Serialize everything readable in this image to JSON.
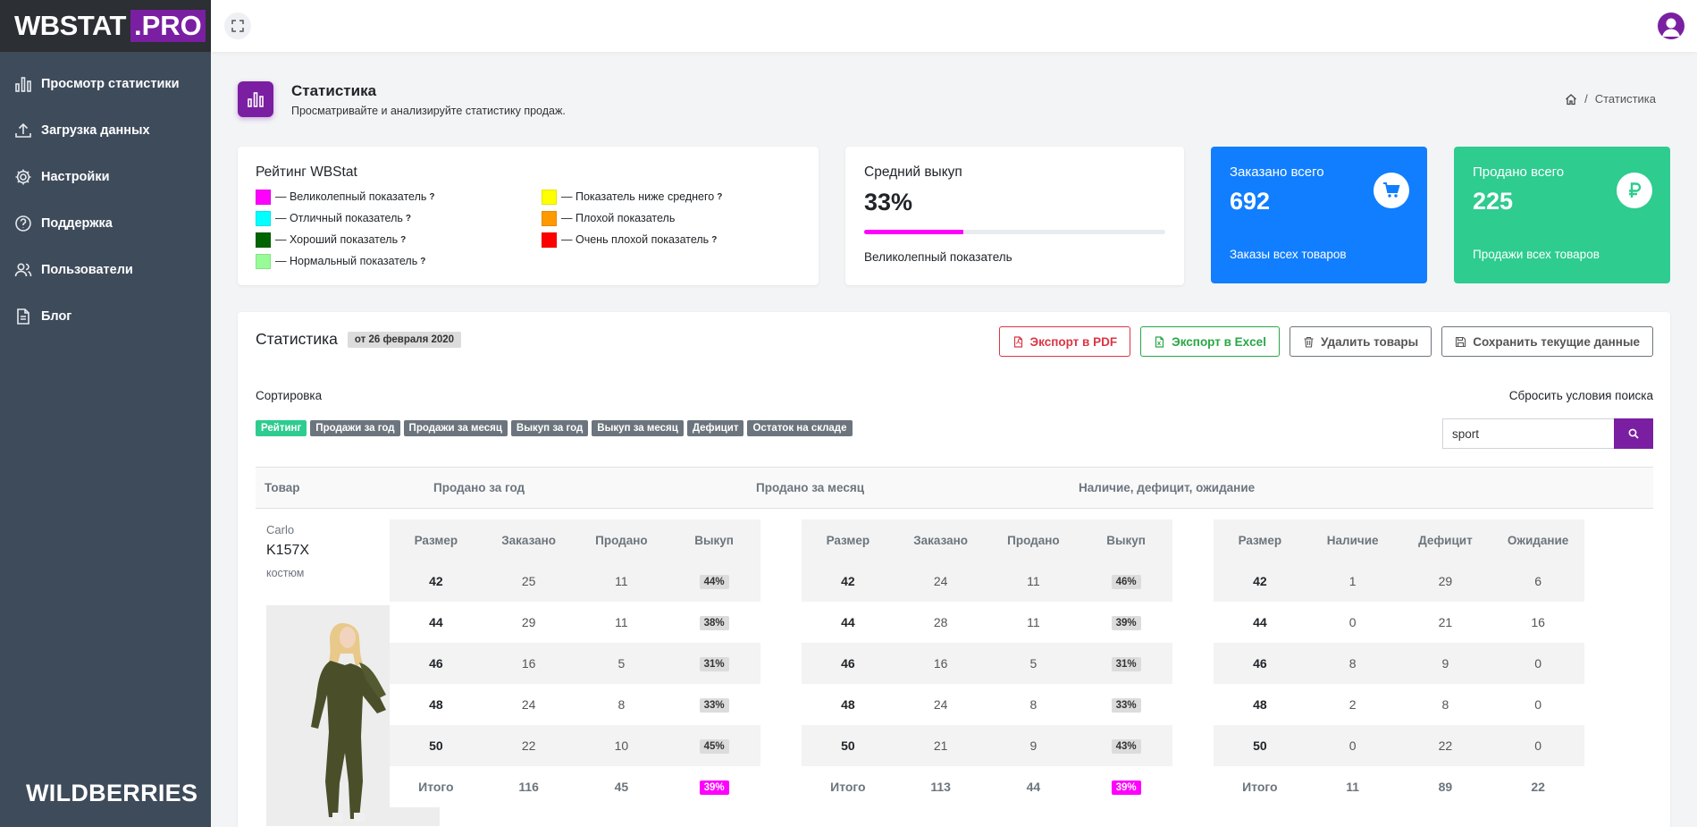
{
  "brand": {
    "logo_main": "WBSTAT",
    "logo_pro": ".PRO",
    "footer": "WILDBERRIES"
  },
  "sidebar": {
    "items": [
      {
        "label": "Просмотр статистики",
        "icon": "bar-chart-icon"
      },
      {
        "label": "Загрузка данных",
        "icon": "upload-icon"
      },
      {
        "label": "Настройки",
        "icon": "gear-icon"
      },
      {
        "label": "Поддержка",
        "icon": "help-circle-icon"
      },
      {
        "label": "Пользователи",
        "icon": "users-icon"
      },
      {
        "label": "Блог",
        "icon": "document-icon"
      }
    ]
  },
  "header": {
    "title": "Статистика",
    "subtitle": "Просматривайте и анализируйте статистику продаж.",
    "breadcrumb": "Статистика"
  },
  "rating": {
    "title": "Рейтинг WBStat",
    "legend": [
      {
        "label": "— Великолепный показатель",
        "color": "#ff00ff"
      },
      {
        "label": "— Показатель ниже среднего",
        "color": "#ffff00"
      },
      {
        "label": "— Отличный показатель",
        "color": "#00ffff"
      },
      {
        "label": "— Плохой показатель",
        "color": "#ff9900"
      },
      {
        "label": "— Хороший показатель",
        "color": "#006400"
      },
      {
        "label": "— Очень плохой показатель",
        "color": "#ff0000"
      },
      {
        "label": "— Нормальный показатель",
        "color": "#98fb98"
      }
    ],
    "question_mark": "?"
  },
  "average": {
    "title": "Средний выкуп",
    "value": "33%",
    "progress": 0.33,
    "note": "Великолепный показатель"
  },
  "orders": {
    "title": "Заказано всего",
    "value": "692",
    "note": "Заказы всех товаров",
    "color": "#117eff"
  },
  "sold": {
    "title": "Продано всего",
    "value": "225",
    "note": "Продажи всех товаров",
    "color": "#2ecc8f"
  },
  "stats": {
    "title": "Статистика",
    "date_badge": "от 26 февраля 2020",
    "buttons": {
      "pdf": "Экспорт в PDF",
      "excel": "Экспорт в Excel",
      "delete": "Удалить товары",
      "save": "Сохранить текущие данные"
    },
    "sort_label": "Сортировка",
    "reset_label": "Сбросить условия поиска",
    "sort_tags": [
      "Рейтинг",
      "Продажи за год",
      "Продажи за месяц",
      "Выкуп за год",
      "Выкуп за месяц",
      "Дефицит",
      "Остаток на складе"
    ],
    "search_value": "sport",
    "columns": {
      "product": "Товар",
      "year": "Продано за год",
      "month": "Продано за месяц",
      "stock": "Наличие, дефицит, ожидание"
    }
  },
  "product": {
    "brand": "Carlo",
    "code": "K157X",
    "type": "костюм"
  },
  "year_table": {
    "headers": [
      "Размер",
      "Заказано",
      "Продано",
      "Выкуп"
    ],
    "rows": [
      [
        "42",
        "25",
        "11",
        "44%"
      ],
      [
        "44",
        "29",
        "11",
        "38%"
      ],
      [
        "46",
        "16",
        "5",
        "31%"
      ],
      [
        "48",
        "24",
        "8",
        "33%"
      ],
      [
        "50",
        "22",
        "10",
        "45%"
      ]
    ],
    "total": [
      "Итого",
      "116",
      "45",
      "39%"
    ]
  },
  "month_table": {
    "headers": [
      "Размер",
      "Заказано",
      "Продано",
      "Выкуп"
    ],
    "rows": [
      [
        "42",
        "24",
        "11",
        "46%"
      ],
      [
        "44",
        "28",
        "11",
        "39%"
      ],
      [
        "46",
        "16",
        "5",
        "31%"
      ],
      [
        "48",
        "24",
        "8",
        "33%"
      ],
      [
        "50",
        "21",
        "9",
        "43%"
      ]
    ],
    "total": [
      "Итого",
      "113",
      "44",
      "39%"
    ]
  },
  "stock_table": {
    "headers": [
      "Размер",
      "Наличие",
      "Дефицит",
      "Ожидание"
    ],
    "rows": [
      [
        "42",
        "1",
        "29",
        "6"
      ],
      [
        "44",
        "0",
        "21",
        "16"
      ],
      [
        "46",
        "8",
        "9",
        "0"
      ],
      [
        "48",
        "2",
        "8",
        "0"
      ],
      [
        "50",
        "0",
        "22",
        "0"
      ]
    ],
    "total": [
      "Итого",
      "11",
      "89",
      "22"
    ]
  }
}
